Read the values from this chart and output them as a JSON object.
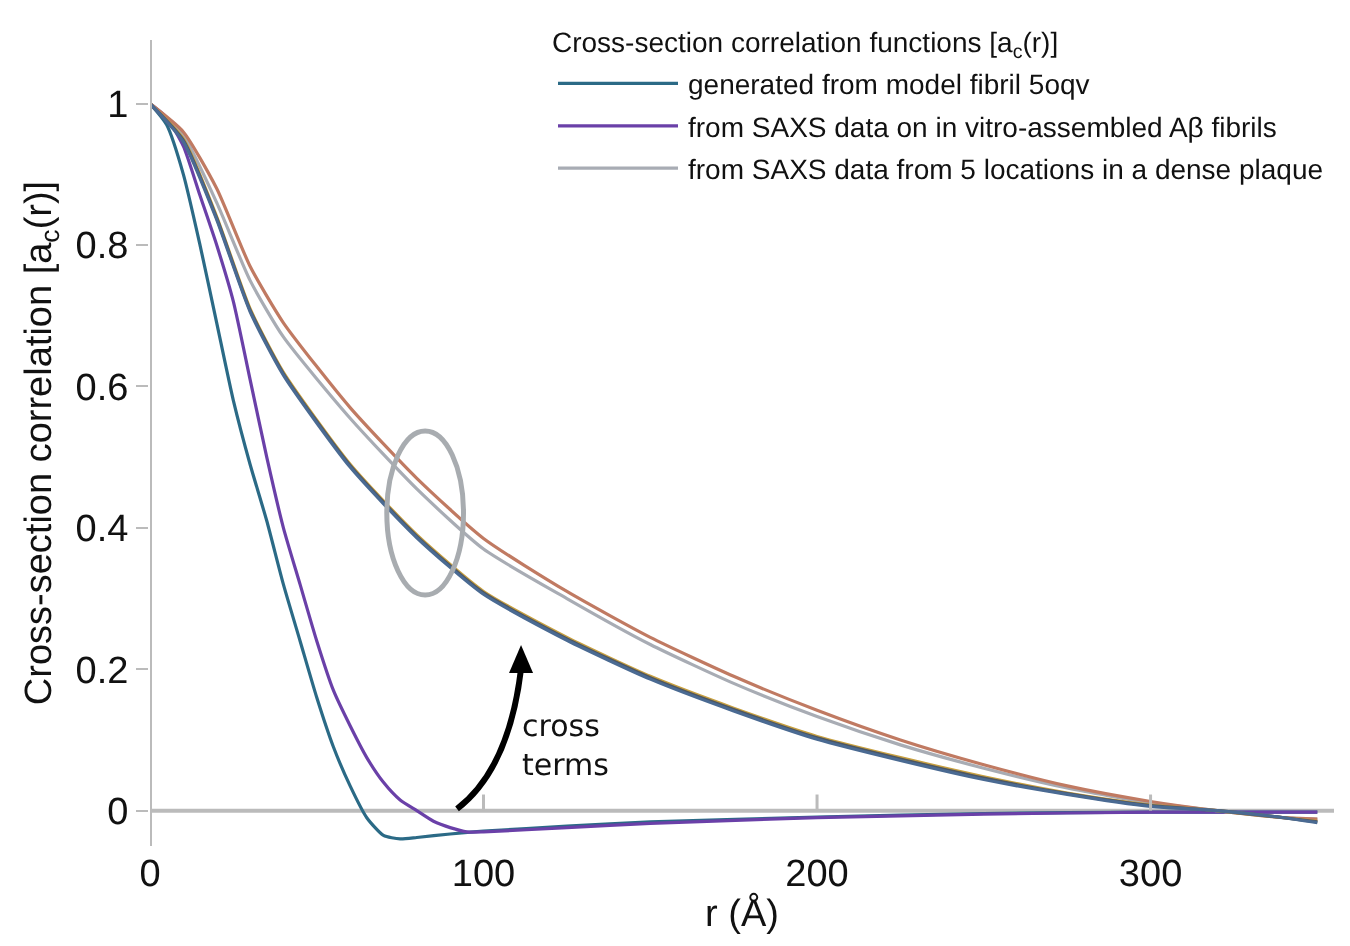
{
  "chart_data": {
    "type": "line",
    "xlabel": "r (Å)",
    "ylabel": "Cross-section correlation [a$_{c}$(r)]",
    "legend_title": "Cross-section correlation functions [a$_{c}$(r)]",
    "legend": "top right",
    "grid": false,
    "marker": "none",
    "line_style": "solid",
    "xlim": [
      0,
      355
    ],
    "ylim": [
      -0.05,
      1.09
    ],
    "xticks": [
      0,
      100,
      200,
      300
    ],
    "yticks": [
      0,
      0.2,
      0.4,
      0.6,
      0.8,
      1
    ],
    "series": [
      {
        "name": "generated from model fibril 5oqv",
        "color": "#2b6a86",
        "x": [
          0,
          5,
          10,
          15,
          20,
          25,
          30,
          35,
          40,
          45,
          50,
          55,
          60,
          65,
          70,
          75,
          80,
          90,
          100,
          125,
          150,
          200,
          250,
          300,
          350
        ],
        "values": [
          1,
          0.97,
          0.9,
          0.8,
          0.69,
          0.58,
          0.49,
          0.41,
          0.32,
          0.24,
          0.16,
          0.09,
          0.035,
          -0.01,
          -0.035,
          -0.04,
          -0.038,
          -0.033,
          -0.029,
          -0.022,
          -0.016,
          -0.009,
          -0.004,
          -0.002,
          -0.002
        ]
      },
      {
        "name": "from SAXS data on in vitro-assembled Aβ fibrils",
        "color": "#6a40a8",
        "x": [
          0,
          5,
          10,
          15,
          20,
          25,
          30,
          35,
          40,
          45,
          50,
          55,
          60,
          65,
          70,
          75,
          80,
          85,
          90,
          95,
          100,
          125,
          150,
          200,
          250,
          300,
          350
        ],
        "values": [
          1,
          0.98,
          0.94,
          0.87,
          0.8,
          0.72,
          0.61,
          0.5,
          0.4,
          0.32,
          0.24,
          0.17,
          0.12,
          0.075,
          0.04,
          0.015,
          0,
          -0.015,
          -0.024,
          -0.03,
          -0.03,
          -0.024,
          -0.018,
          -0.01,
          -0.005,
          -0.002,
          -0.002
        ]
      },
      {
        "name": "from SAXS data from 5 locations in a dense plaque",
        "color": "#a8acb4",
        "x": [
          0,
          10,
          20,
          30,
          40,
          60,
          80,
          100,
          125,
          150,
          175,
          200,
          225,
          250,
          275,
          300,
          320,
          340,
          350
        ],
        "values": [
          1,
          0.955,
          0.86,
          0.75,
          0.67,
          0.555,
          0.455,
          0.37,
          0.3,
          0.235,
          0.18,
          0.133,
          0.093,
          0.06,
          0.032,
          0.011,
          0,
          -0.01,
          -0.012
        ]
      },
      {
        "color": "#c07a62",
        "x": [
          0,
          10,
          20,
          30,
          40,
          60,
          80,
          100,
          125,
          150,
          175,
          200,
          225,
          250,
          275,
          300,
          320,
          340,
          350
        ],
        "values": [
          1,
          0.96,
          0.88,
          0.77,
          0.69,
          0.57,
          0.47,
          0.385,
          0.31,
          0.245,
          0.19,
          0.142,
          0.1,
          0.065,
          0.035,
          0.013,
          0,
          -0.01,
          -0.012
        ]
      },
      {
        "color": "#c8a040",
        "x": [
          0,
          10,
          20,
          30,
          40,
          60,
          80,
          100,
          125,
          150,
          175,
          200,
          225,
          250,
          275,
          300,
          320,
          340,
          350
        ],
        "values": [
          1,
          0.95,
          0.84,
          0.71,
          0.62,
          0.49,
          0.39,
          0.31,
          0.245,
          0.19,
          0.145,
          0.105,
          0.075,
          0.048,
          0.025,
          0.008,
          0,
          -0.01,
          -0.015
        ]
      },
      {
        "color": "#4e5660",
        "x": [
          0,
          10,
          20,
          30,
          40,
          60,
          80,
          100,
          125,
          150,
          175,
          200,
          225,
          250,
          275,
          300,
          320,
          340,
          350
        ],
        "values": [
          1,
          0.948,
          0.838,
          0.708,
          0.618,
          0.488,
          0.388,
          0.308,
          0.243,
          0.188,
          0.143,
          0.103,
          0.073,
          0.046,
          0.024,
          0.007,
          0,
          -0.01,
          -0.016
        ]
      },
      {
        "color": "#4a6a92",
        "x": [
          0,
          10,
          20,
          30,
          40,
          60,
          80,
          100,
          125,
          150,
          175,
          200,
          225,
          250,
          275,
          300,
          320,
          340,
          350
        ],
        "values": [
          1,
          0.946,
          0.836,
          0.706,
          0.616,
          0.486,
          0.386,
          0.306,
          0.241,
          0.186,
          0.141,
          0.101,
          0.071,
          0.044,
          0.023,
          0.006,
          0,
          -0.01,
          -0.017
        ]
      }
    ],
    "annotations": [
      "cross terms"
    ]
  }
}
